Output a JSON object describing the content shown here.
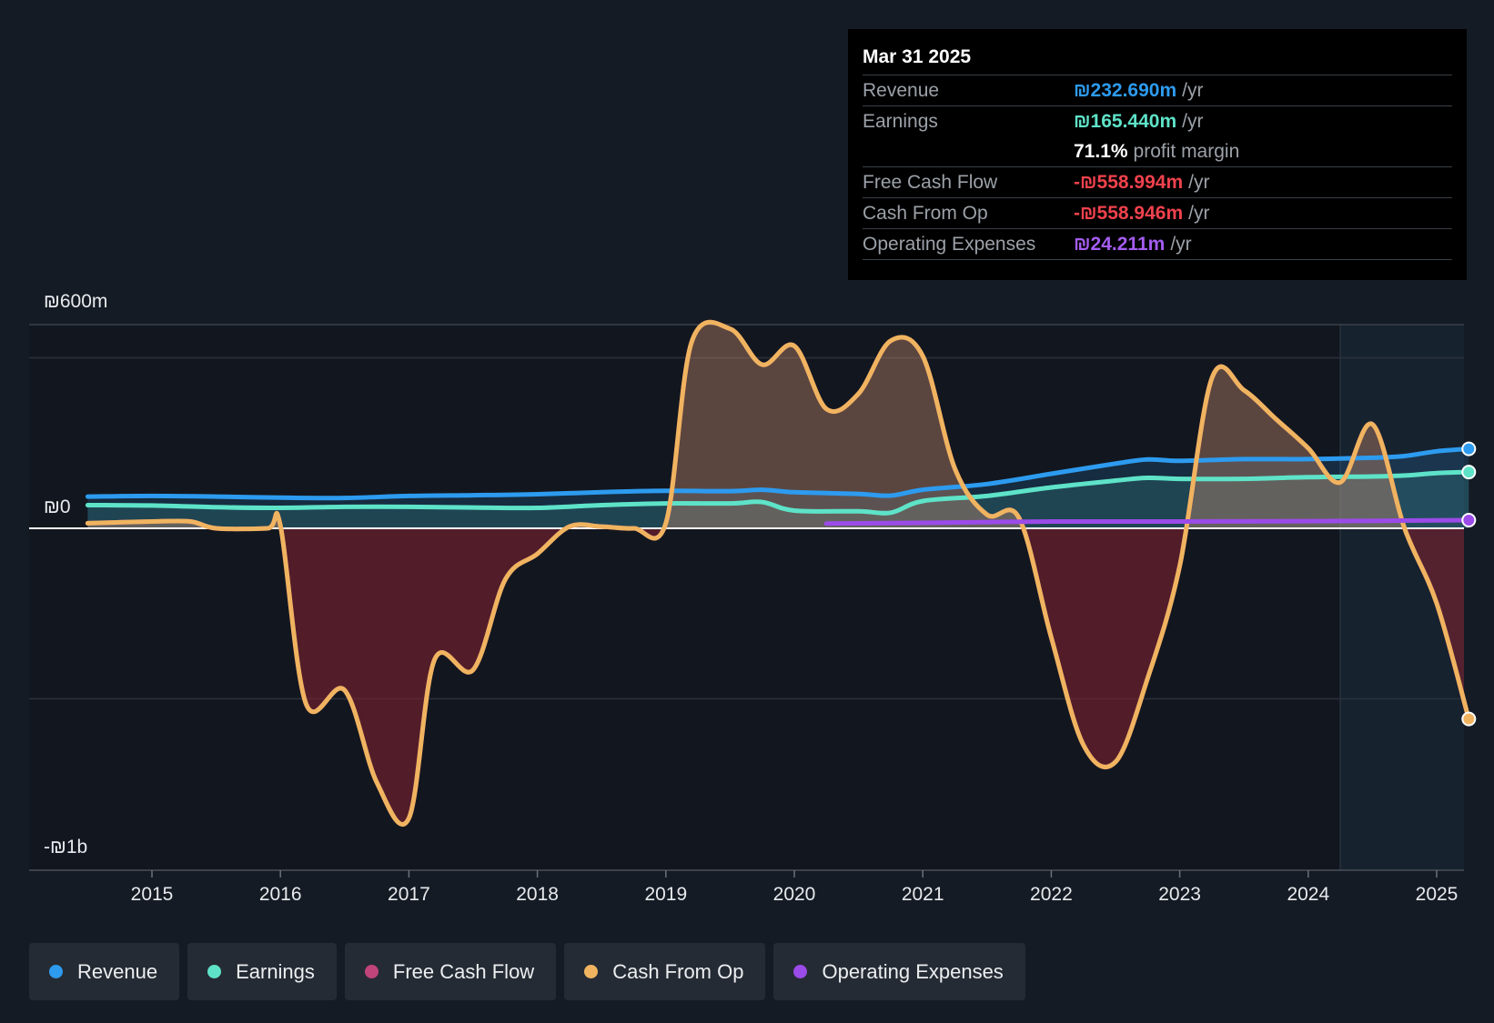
{
  "chart_data": {
    "type": "line",
    "y_axis": {
      "top_label": "₪600m",
      "zero_label": "₪0",
      "bottom_label": "-₪1b",
      "ylim": [
        -1000,
        600
      ]
    },
    "x_ticks": [
      "2015",
      "2016",
      "2017",
      "2018",
      "2019",
      "2020",
      "2021",
      "2022",
      "2023",
      "2024",
      "2025"
    ],
    "forecast_region_start": 2024.25,
    "series": [
      {
        "name": "Revenue",
        "color": "#2d9bef",
        "points": [
          [
            2014.5,
            93
          ],
          [
            2015,
            95
          ],
          [
            2015.5,
            93
          ],
          [
            2016,
            90
          ],
          [
            2016.5,
            89
          ],
          [
            2017,
            95
          ],
          [
            2017.5,
            97
          ],
          [
            2018,
            100
          ],
          [
            2018.5,
            106
          ],
          [
            2019,
            110
          ],
          [
            2019.5,
            109
          ],
          [
            2019.75,
            113
          ],
          [
            2020,
            106
          ],
          [
            2020.5,
            101
          ],
          [
            2020.75,
            96
          ],
          [
            2021,
            113
          ],
          [
            2021.5,
            130
          ],
          [
            2022,
            160
          ],
          [
            2022.5,
            190
          ],
          [
            2022.75,
            202
          ],
          [
            2023,
            198
          ],
          [
            2023.5,
            203
          ],
          [
            2024,
            203
          ],
          [
            2024.5,
            207
          ],
          [
            2024.75,
            212
          ],
          [
            2025,
            226
          ],
          [
            2025.25,
            233
          ]
        ]
      },
      {
        "name": "Earnings",
        "color": "#5ee3c8",
        "points": [
          [
            2014.5,
            68
          ],
          [
            2015,
            67
          ],
          [
            2015.5,
            62
          ],
          [
            2016,
            60
          ],
          [
            2016.5,
            63
          ],
          [
            2017,
            63
          ],
          [
            2017.5,
            61
          ],
          [
            2018,
            60
          ],
          [
            2018.5,
            68
          ],
          [
            2019,
            73
          ],
          [
            2019.5,
            73
          ],
          [
            2019.75,
            77
          ],
          [
            2020,
            52
          ],
          [
            2020.5,
            50
          ],
          [
            2020.75,
            46
          ],
          [
            2021,
            80
          ],
          [
            2021.5,
            95
          ],
          [
            2022,
            120
          ],
          [
            2022.5,
            140
          ],
          [
            2022.75,
            148
          ],
          [
            2023,
            145
          ],
          [
            2023.5,
            145
          ],
          [
            2024,
            150
          ],
          [
            2024.5,
            152
          ],
          [
            2024.75,
            155
          ],
          [
            2025,
            162
          ],
          [
            2025.25,
            165
          ]
        ]
      },
      {
        "name": "Free Cash Flow",
        "color": "#c0447a",
        "points": [
          [
            2014.5,
            15
          ],
          [
            2015,
            20
          ],
          [
            2015.3,
            20
          ],
          [
            2015.5,
            0
          ],
          [
            2015.9,
            0
          ],
          [
            2016,
            8
          ],
          [
            2016.2,
            -515
          ],
          [
            2016.5,
            -475
          ],
          [
            2016.75,
            -745
          ],
          [
            2017,
            -850
          ],
          [
            2017.2,
            -385
          ],
          [
            2017.5,
            -415
          ],
          [
            2017.75,
            -150
          ],
          [
            2018,
            -75
          ],
          [
            2018.25,
            5
          ],
          [
            2018.5,
            5
          ],
          [
            2018.75,
            0
          ],
          [
            2019,
            15
          ],
          [
            2019.2,
            545
          ],
          [
            2019.5,
            585
          ],
          [
            2019.75,
            480
          ],
          [
            2020,
            535
          ],
          [
            2020.25,
            350
          ],
          [
            2020.5,
            395
          ],
          [
            2020.75,
            550
          ],
          [
            2021,
            505
          ],
          [
            2021.25,
            175
          ],
          [
            2021.5,
            40
          ],
          [
            2021.75,
            30
          ],
          [
            2022,
            -320
          ],
          [
            2022.25,
            -635
          ],
          [
            2022.5,
            -685
          ],
          [
            2022.75,
            -440
          ],
          [
            2023,
            -110
          ],
          [
            2023.25,
            440
          ],
          [
            2023.5,
            405
          ],
          [
            2023.75,
            320
          ],
          [
            2024,
            235
          ],
          [
            2024.25,
            135
          ],
          [
            2024.5,
            305
          ],
          [
            2024.75,
            0
          ],
          [
            2025,
            -220
          ],
          [
            2025.25,
            -560
          ]
        ]
      },
      {
        "name": "Cash From Op",
        "color": "#f0b460",
        "points": [
          [
            2014.5,
            15
          ],
          [
            2015,
            20
          ],
          [
            2015.3,
            20
          ],
          [
            2015.5,
            0
          ],
          [
            2015.9,
            0
          ],
          [
            2016,
            8
          ],
          [
            2016.2,
            -515
          ],
          [
            2016.5,
            -475
          ],
          [
            2016.75,
            -745
          ],
          [
            2017,
            -850
          ],
          [
            2017.2,
            -385
          ],
          [
            2017.5,
            -415
          ],
          [
            2017.75,
            -150
          ],
          [
            2018,
            -75
          ],
          [
            2018.25,
            5
          ],
          [
            2018.5,
            5
          ],
          [
            2018.75,
            0
          ],
          [
            2019,
            15
          ],
          [
            2019.2,
            545
          ],
          [
            2019.5,
            585
          ],
          [
            2019.75,
            480
          ],
          [
            2020,
            535
          ],
          [
            2020.25,
            350
          ],
          [
            2020.5,
            395
          ],
          [
            2020.75,
            550
          ],
          [
            2021,
            505
          ],
          [
            2021.25,
            175
          ],
          [
            2021.5,
            40
          ],
          [
            2021.75,
            30
          ],
          [
            2022,
            -320
          ],
          [
            2022.25,
            -635
          ],
          [
            2022.5,
            -685
          ],
          [
            2022.75,
            -440
          ],
          [
            2023,
            -110
          ],
          [
            2023.25,
            440
          ],
          [
            2023.5,
            405
          ],
          [
            2023.75,
            320
          ],
          [
            2024,
            235
          ],
          [
            2024.25,
            135
          ],
          [
            2024.5,
            305
          ],
          [
            2024.75,
            0
          ],
          [
            2025,
            -220
          ],
          [
            2025.25,
            -559
          ]
        ]
      },
      {
        "name": "Operating Expenses",
        "color": "#9b4be8",
        "points": [
          [
            2020.25,
            14
          ],
          [
            2021,
            16
          ],
          [
            2022,
            20
          ],
          [
            2023,
            20
          ],
          [
            2024,
            21
          ],
          [
            2025.25,
            24
          ]
        ]
      }
    ]
  },
  "tooltip": {
    "date": "Mar 31 2025",
    "rows": [
      {
        "label": "Revenue",
        "value": "₪232.690m",
        "unit": "/yr",
        "color": "#2d9bef"
      },
      {
        "label": "Earnings",
        "value": "₪165.440m",
        "unit": "/yr",
        "color": "#5ee3c8"
      },
      {
        "label": "",
        "value": "71.1%",
        "unit": "profit margin",
        "color": "#ffffff"
      },
      {
        "label": "Free Cash Flow",
        "value": "-₪558.994m",
        "unit": "/yr",
        "color": "#f0424d"
      },
      {
        "label": "Cash From Op",
        "value": "-₪558.946m",
        "unit": "/yr",
        "color": "#f0424d"
      },
      {
        "label": "Operating Expenses",
        "value": "₪24.211m",
        "unit": "/yr",
        "color": "#a45cf0"
      }
    ]
  },
  "legend": [
    {
      "label": "Revenue",
      "color": "#2d9bef"
    },
    {
      "label": "Earnings",
      "color": "#5ee3c8"
    },
    {
      "label": "Free Cash Flow",
      "color": "#c0447a"
    },
    {
      "label": "Cash From Op",
      "color": "#f0b460"
    },
    {
      "label": "Operating Expenses",
      "color": "#9b4be8"
    }
  ]
}
